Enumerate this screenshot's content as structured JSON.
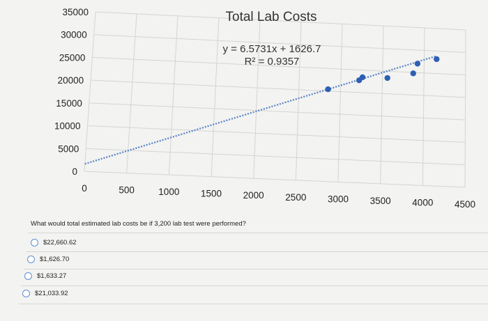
{
  "chart_data": {
    "type": "scatter",
    "title": "Total Lab Costs",
    "xlim": [
      0,
      4500
    ],
    "ylim": [
      0,
      35000
    ],
    "x_ticks": [
      "0",
      "500",
      "1000",
      "1500",
      "2000",
      "2500",
      "3000",
      "3500",
      "4000",
      "4500"
    ],
    "y_ticks": [
      "0",
      "5000",
      "10000",
      "15000",
      "20000",
      "25000",
      "30000",
      "35000"
    ],
    "grid": true,
    "points": [
      {
        "x": 2850,
        "y": 20400
      },
      {
        "x": 3220,
        "y": 22700
      },
      {
        "x": 3260,
        "y": 23400
      },
      {
        "x": 3560,
        "y": 23500
      },
      {
        "x": 3870,
        "y": 24800
      },
      {
        "x": 3920,
        "y": 27000
      },
      {
        "x": 4150,
        "y": 28200
      }
    ],
    "trendline": {
      "slope": 6.5731,
      "intercept": 1626.7,
      "x_range": [
        0,
        4150
      ],
      "style": "dotted",
      "equation": "y = 6.5731x + 1626.7",
      "r_squared": "R² = 0.9357"
    },
    "point_color": "#2f5fb3",
    "trend_color": "#5f86c9"
  },
  "question": "What would total estimated lab costs be if 3,200 lab test were performed?",
  "options": [
    {
      "label": "$22,660.62"
    },
    {
      "label": "$1,626.70"
    },
    {
      "label": "$1,633.27"
    },
    {
      "label": "$21,033.92"
    }
  ]
}
